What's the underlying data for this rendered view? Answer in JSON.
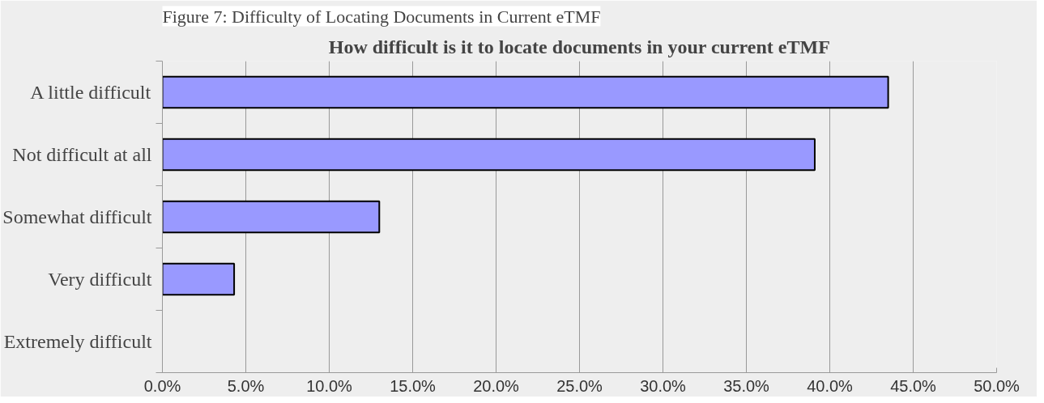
{
  "chart_data": {
    "type": "bar",
    "orientation": "horizontal",
    "title": "How difficult is it to locate documents in your current eTMF",
    "annotations": [
      "Figure 7: Difficulty of Locating Documents in Current eTMF"
    ],
    "categories": [
      "A little difficult",
      "Not difficult at all",
      "Somewhat difficult",
      "Very difficult",
      "Extremely difficult"
    ],
    "values": [
      43.5,
      39.1,
      13.0,
      4.3,
      0
    ],
    "color": "#9999ff",
    "xlim": [
      0,
      50
    ],
    "xticks": [
      {
        "value": 0,
        "label": "0.0%"
      },
      {
        "value": 5,
        "label": "5.0%"
      },
      {
        "value": 10,
        "label": "10.0%"
      },
      {
        "value": 15,
        "label": "15.0%"
      },
      {
        "value": 20,
        "label": "20.0%"
      },
      {
        "value": 25,
        "label": "25.0%"
      },
      {
        "value": 30,
        "label": "30.0%"
      },
      {
        "value": 35,
        "label": "35.0%"
      },
      {
        "value": 40,
        "label": "40.0%"
      },
      {
        "value": 45,
        "label": "45.0%"
      },
      {
        "value": 50,
        "label": "50.0%"
      }
    ],
    "grid": "x"
  }
}
